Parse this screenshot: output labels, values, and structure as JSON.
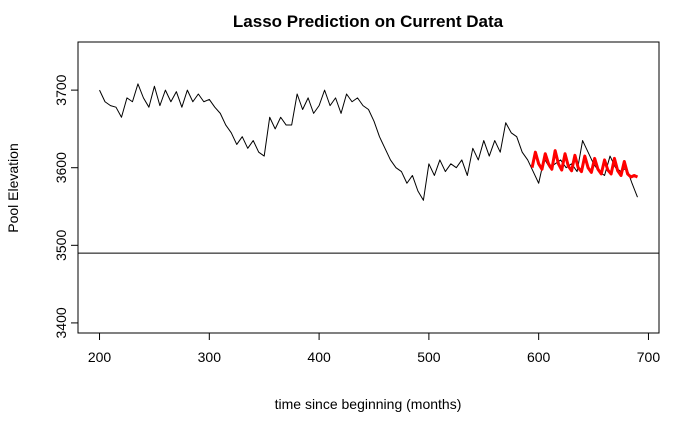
{
  "chart_data": {
    "type": "line",
    "title": "Lasso Prediction on Current Data",
    "x_label": "time since beginning (months)",
    "y_label": "Pool Elevation",
    "xlim": [
      180.4,
      709.6
    ],
    "ylim": [
      3387,
      3762
    ],
    "xticks": [
      200,
      300,
      400,
      500,
      600,
      700
    ],
    "yticks": [
      3400,
      3500,
      3600,
      3700
    ],
    "hlines": [
      3490
    ],
    "series": [
      {
        "color": "#000000",
        "width": 1,
        "x": [
          200,
          205,
          210,
          215,
          220,
          225,
          230,
          235,
          240,
          245,
          250,
          255,
          260,
          265,
          270,
          275,
          280,
          285,
          290,
          295,
          300,
          305,
          310,
          315,
          320,
          325,
          330,
          335,
          340,
          345,
          350,
          355,
          360,
          365,
          370,
          375,
          380,
          385,
          390,
          395,
          400,
          405,
          410,
          415,
          420,
          425,
          430,
          435,
          440,
          445,
          450,
          455,
          460,
          465,
          470,
          475,
          480,
          485,
          490,
          495,
          500,
          505,
          510,
          515,
          520,
          525,
          530,
          535,
          540,
          545,
          550,
          555,
          560,
          565,
          570,
          575,
          580,
          585,
          590,
          595,
          600,
          605,
          610,
          615,
          620,
          625,
          630,
          635,
          640,
          645,
          650,
          655,
          660,
          665,
          670,
          675,
          680,
          685,
          690
        ],
        "values": [
          3700,
          3685,
          3680,
          3678,
          3665,
          3690,
          3685,
          3708,
          3690,
          3678,
          3705,
          3680,
          3700,
          3685,
          3698,
          3678,
          3700,
          3685,
          3695,
          3685,
          3688,
          3678,
          3670,
          3655,
          3645,
          3630,
          3640,
          3625,
          3635,
          3620,
          3615,
          3665,
          3650,
          3665,
          3655,
          3655,
          3695,
          3675,
          3690,
          3670,
          3680,
          3700,
          3680,
          3690,
          3670,
          3695,
          3685,
          3690,
          3680,
          3675,
          3660,
          3640,
          3625,
          3610,
          3600,
          3595,
          3580,
          3590,
          3570,
          3558,
          3605,
          3590,
          3610,
          3595,
          3605,
          3600,
          3610,
          3590,
          3625,
          3610,
          3635,
          3615,
          3635,
          3620,
          3658,
          3645,
          3640,
          3620,
          3610,
          3595,
          3580,
          3612,
          3600,
          3605,
          3610,
          3600,
          3605,
          3595,
          3635,
          3620,
          3605,
          3595,
          3590,
          3615,
          3600,
          3595,
          3600,
          3580,
          3562
        ]
      },
      {
        "color": "#ff0000",
        "width": 3,
        "x": [
          594,
          597,
          600,
          603,
          606,
          609,
          612,
          615,
          618,
          621,
          624,
          627,
          630,
          633,
          636,
          639,
          642,
          645,
          648,
          651,
          654,
          657,
          660,
          663,
          666,
          669,
          672,
          675,
          678,
          681,
          684,
          687,
          690
        ],
        "values": [
          3600,
          3620,
          3605,
          3598,
          3618,
          3605,
          3598,
          3622,
          3605,
          3597,
          3618,
          3602,
          3596,
          3616,
          3600,
          3595,
          3615,
          3600,
          3594,
          3612,
          3598,
          3592,
          3610,
          3597,
          3592,
          3612,
          3596,
          3590,
          3608,
          3592,
          3588,
          3590,
          3588
        ]
      }
    ]
  }
}
